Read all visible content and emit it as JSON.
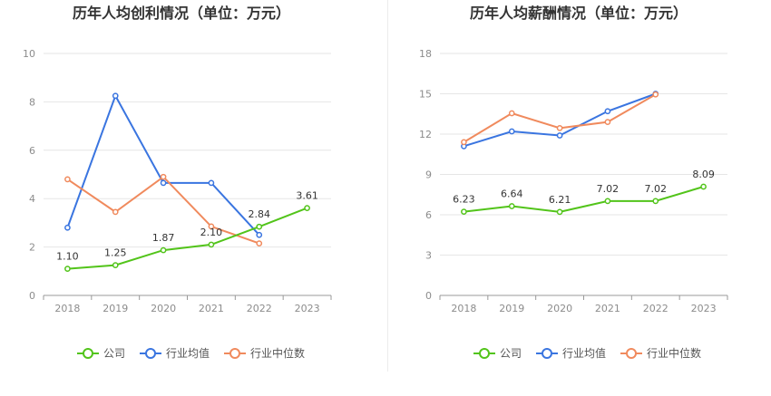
{
  "chart_data": [
    {
      "type": "line",
      "title": "历年人均创利情况（单位：万元）",
      "xlabel": "",
      "ylabel": "",
      "categories": [
        "2018",
        "2019",
        "2020",
        "2021",
        "2022",
        "2023"
      ],
      "ylim": [
        0,
        10
      ],
      "yticks": [
        0,
        2,
        4,
        6,
        8,
        10
      ],
      "grid": true,
      "legend_position": "bottom",
      "series": [
        {
          "name": "公司",
          "color": "#52c41a",
          "values": [
            1.1,
            1.25,
            1.87,
            2.1,
            2.84,
            3.61
          ],
          "labels": [
            "1.10",
            "1.25",
            "1.87",
            "2.10",
            "2.84",
            "3.61"
          ]
        },
        {
          "name": "行业均值",
          "color": "#3a75e0",
          "values": [
            2.8,
            8.25,
            4.65,
            4.65,
            2.5,
            null
          ]
        },
        {
          "name": "行业中位数",
          "color": "#f08a5d",
          "values": [
            4.8,
            3.45,
            4.9,
            2.85,
            2.15,
            null
          ]
        }
      ]
    },
    {
      "type": "line",
      "title": "历年人均薪酬情况（单位：万元）",
      "xlabel": "",
      "ylabel": "",
      "categories": [
        "2018",
        "2019",
        "2020",
        "2021",
        "2022",
        "2023"
      ],
      "ylim": [
        0,
        18
      ],
      "yticks": [
        0,
        3,
        6,
        9,
        12,
        15,
        18
      ],
      "grid": true,
      "legend_position": "bottom",
      "series": [
        {
          "name": "公司",
          "color": "#52c41a",
          "values": [
            6.23,
            6.64,
            6.21,
            7.02,
            7.02,
            8.09
          ],
          "labels": [
            "6.23",
            "6.64",
            "6.21",
            "7.02",
            "7.02",
            "8.09"
          ]
        },
        {
          "name": "行业均值",
          "color": "#3a75e0",
          "values": [
            11.1,
            12.2,
            11.9,
            13.7,
            15.0,
            null
          ]
        },
        {
          "name": "行业中位数",
          "color": "#f08a5d",
          "values": [
            11.4,
            13.55,
            12.45,
            12.9,
            14.95,
            null
          ]
        }
      ]
    }
  ]
}
